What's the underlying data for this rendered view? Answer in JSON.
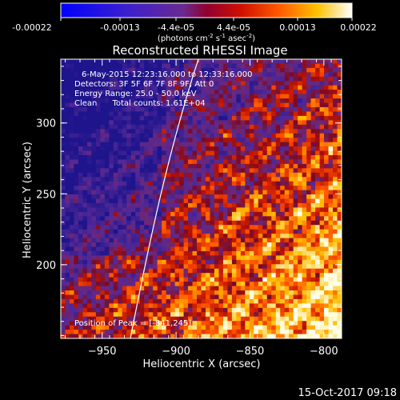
{
  "colorbar": {
    "ticks": [
      "-0.00022",
      "-0.00013",
      "-4.4e-05",
      "4.4e-05",
      "0.00013",
      "0.00022"
    ],
    "units_main": "(photons cm",
    "units_sup1": "-2",
    "units_mid": " s",
    "units_sup2": "-1",
    "units_end": " asec",
    "units_sup3": "-2",
    "units_close": ")",
    "range": [
      -0.00022,
      0.00022
    ]
  },
  "chart_data": {
    "type": "heatmap",
    "title": "Reconstructed RHESSI Image",
    "xlabel": "Heliocentric X (arcsec)",
    "ylabel": "Heliocentric Y (arcsec)",
    "xlim": [
      -978,
      -788
    ],
    "ylim": [
      148,
      345
    ],
    "x_ticks": [
      -950,
      -900,
      -850,
      -800
    ],
    "y_ticks": [
      200,
      250,
      300
    ],
    "peak": [
      -841,
      245
    ],
    "annotations": [
      "6-May-2015 12:23:16.000 to 12:33:16.000",
      "Detectors: 3F 5F 6F 7F 8F 9F, Att 0",
      "Energy Range: 25.0 - 50.0 keV",
      "Clean      Total counts: 1.61E+04"
    ],
    "peak_label": "Position of Peak = [-841,245]",
    "colormap": "blue-purple-red-orange-yellow-white",
    "limb": "solar limb arc drawn in white"
  },
  "footer": {
    "timestamp": "15-Oct-2017 09:18"
  }
}
